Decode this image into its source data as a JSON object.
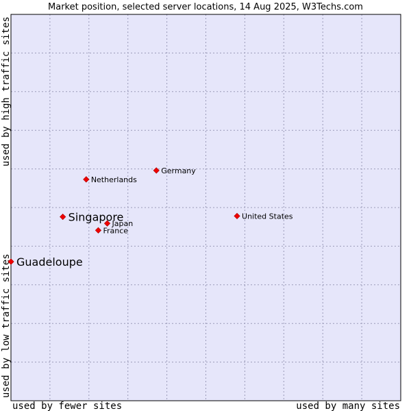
{
  "chart_data": {
    "type": "scatter",
    "title": "Market position, selected server locations, 14 Aug 2025, W3Techs.com",
    "xlabel_low": "used by fewer sites",
    "xlabel_high": "used by many sites",
    "ylabel_low": "used by low traffic sites",
    "ylabel_high": "used by high traffic sites",
    "xlim": [
      0,
      10
    ],
    "ylim": [
      0,
      10
    ],
    "grid": true,
    "colors": {
      "plot_background": "#e6e6fa",
      "grid": "#9a9ab8",
      "marker": "#ee0000",
      "frame": "#000000"
    },
    "points": [
      {
        "label": "Guadeloupe",
        "x": 0.0,
        "y": 3.6,
        "emphasis": true
      },
      {
        "label": "Singapore",
        "x": 1.33,
        "y": 4.76,
        "emphasis": true
      },
      {
        "label": "Japan",
        "x": 2.47,
        "y": 4.59,
        "emphasis": false
      },
      {
        "label": "France",
        "x": 2.24,
        "y": 4.41,
        "emphasis": false
      },
      {
        "label": "Netherlands",
        "x": 1.93,
        "y": 5.73,
        "emphasis": false
      },
      {
        "label": "Germany",
        "x": 3.73,
        "y": 5.96,
        "emphasis": false
      },
      {
        "label": "United States",
        "x": 5.8,
        "y": 4.78,
        "emphasis": false
      }
    ]
  }
}
